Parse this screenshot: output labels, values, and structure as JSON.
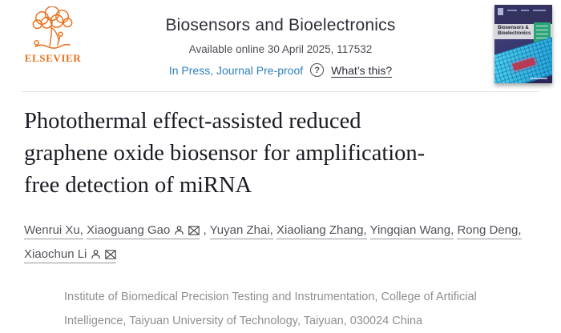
{
  "header": {
    "elsevier_wordmark": "ELSEVIER",
    "journal_title": "Biosensors and Bioelectronics",
    "available_online": "Available online 30 April 2025, 117532",
    "in_press_label": "In Press, Journal Pre-proof",
    "question_icon_glyph": "?",
    "whats_this_label": "What’s this?",
    "cover": {
      "line1": "Biosensors &",
      "line2": "Bioelectronics"
    }
  },
  "article": {
    "title": "Photothermal effect-assisted reduced graphene oxide biosensor for amplification-free detection of miRNA",
    "title_lines": [
      "Photothermal effect-assisted reduced",
      "graphene oxide biosensor for amplification-",
      "free detection of miRNA"
    ],
    "authors": [
      {
        "name": "Wenrui Xu",
        "icons": []
      },
      {
        "name": "Xiaoguang Gao",
        "icons": [
          "person",
          "envelope"
        ]
      },
      {
        "name": "Yuyan Zhai",
        "icons": []
      },
      {
        "name": "Xiaoliang Zhang",
        "icons": []
      },
      {
        "name": "Yingqian Wang",
        "icons": []
      },
      {
        "name": "Rong Deng",
        "icons": []
      },
      {
        "name": "Xiaochun Li",
        "icons": [
          "person",
          "envelope"
        ]
      }
    ],
    "affiliation": "Institute of Biomedical Precision Testing and Instrumentation, College of Artificial Intelligence, Taiyuan University of Technology, Taiyuan, 030024 China"
  },
  "colors": {
    "elsevier_orange": "#e9711c",
    "link_blue": "#2e7fc2",
    "heading_text": "#2d2d39",
    "title_text": "#1b1b24",
    "author_text": "#53535b",
    "muted_text": "#8e8e94",
    "cover_green": "#2aa579",
    "cover_cyan": "#38c4ea",
    "cover_navy": "#34325f"
  }
}
